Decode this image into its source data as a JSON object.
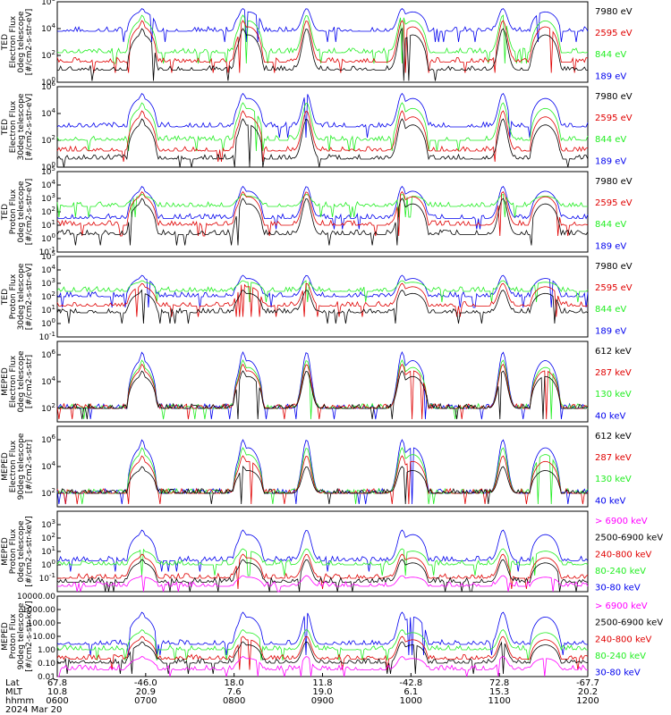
{
  "colors": {
    "black": "#000000",
    "red": "#e00000",
    "green": "#22ee22",
    "blue": "#0000ee",
    "magenta": "#ff00ff"
  },
  "chart_data": [
    {
      "type": "line",
      "ylog": true,
      "ylim_exp": [
        0,
        6
      ],
      "ylabel": [
        "TED",
        "Electron Flux",
        "0deg telescope",
        "[#/cm2-s-str-eV]"
      ],
      "yticks": [
        "10^0",
        "10^2",
        "10^4",
        "10^6"
      ],
      "legend": [
        {
          "label": "7980 eV",
          "color": "black"
        },
        {
          "label": "2595 eV",
          "color": "red"
        },
        {
          "label": "844 eV",
          "color": "green"
        },
        {
          "label": "189 eV",
          "color": "blue"
        }
      ],
      "series": [
        {
          "color": "blue",
          "base": 3.8,
          "peak": 5.5
        },
        {
          "color": "green",
          "base": 2.2,
          "peak": 5.0
        },
        {
          "color": "red",
          "base": 1.5,
          "peak": 4.6
        },
        {
          "color": "black",
          "base": 0.9,
          "peak": 4.0
        }
      ]
    },
    {
      "type": "line",
      "ylog": true,
      "ylim_exp": [
        0,
        6
      ],
      "ylabel": [
        "TED",
        "Electron Flux",
        "30deg telescope",
        "[#/cm2-s-str-eV]"
      ],
      "yticks": [
        "10^0",
        "10^2",
        "10^4",
        "10^6"
      ],
      "legend": [
        {
          "label": "7980 eV",
          "color": "black"
        },
        {
          "label": "2595 eV",
          "color": "red"
        },
        {
          "label": "844 eV",
          "color": "green"
        },
        {
          "label": "189 eV",
          "color": "blue"
        }
      ],
      "series": [
        {
          "color": "blue",
          "base": 3.0,
          "peak": 5.5
        },
        {
          "color": "green",
          "base": 2.0,
          "peak": 4.8
        },
        {
          "color": "red",
          "base": 1.2,
          "peak": 4.2
        },
        {
          "color": "black",
          "base": 0.6,
          "peak": 3.6
        }
      ]
    },
    {
      "type": "line",
      "ylog": true,
      "ylim_exp": [
        -1,
        5
      ],
      "ylabel": [
        "TED",
        "Proton Flux",
        "0deg telescope",
        "[#/cm2-s-str-eV]"
      ],
      "yticks": [
        "10^-1",
        "10^0",
        "10^1",
        "10^2",
        "10^3",
        "10^4",
        "10^5"
      ],
      "legend": [
        {
          "label": "7980 eV",
          "color": "black"
        },
        {
          "label": "2595 eV",
          "color": "red"
        },
        {
          "label": "844 eV",
          "color": "green"
        },
        {
          "label": "189 eV",
          "color": "blue"
        }
      ],
      "series": [
        {
          "color": "blue",
          "base": 1.5,
          "peak": 3.9
        },
        {
          "color": "green",
          "base": 2.4,
          "peak": 3.3
        },
        {
          "color": "red",
          "base": 1.0,
          "peak": 3.5
        },
        {
          "color": "black",
          "base": 0.3,
          "peak": 3.0
        }
      ]
    },
    {
      "type": "line",
      "ylog": true,
      "ylim_exp": [
        -1,
        5
      ],
      "ylabel": [
        "TED",
        "Proton Flux",
        "30deg telescope",
        "[#/cm2-s-str-eV]"
      ],
      "yticks": [
        "10^-1",
        "10^0",
        "10^1",
        "10^2",
        "10^3",
        "10^4",
        "10^5"
      ],
      "legend": [
        {
          "label": "7980 eV",
          "color": "black"
        },
        {
          "label": "2595 eV",
          "color": "red"
        },
        {
          "label": "844 eV",
          "color": "green"
        },
        {
          "label": "189 eV",
          "color": "blue"
        }
      ],
      "series": [
        {
          "color": "blue",
          "base": 2.0,
          "peak": 3.6
        },
        {
          "color": "green",
          "base": 2.4,
          "peak": 3.2
        },
        {
          "color": "red",
          "base": 1.3,
          "peak": 3.0
        },
        {
          "color": "black",
          "base": 0.8,
          "peak": 2.5
        }
      ]
    },
    {
      "type": "line",
      "ylog": true,
      "ylim_exp": [
        1,
        7
      ],
      "ylabel": [
        "MEPED",
        "Electron Flux",
        "0deg telescope",
        "[#/cm2-s-str]"
      ],
      "yticks": [
        "10^2",
        "10^4",
        "10^6"
      ],
      "legend": [
        {
          "label": "612 keV",
          "color": "black"
        },
        {
          "label": "287 keV",
          "color": "red"
        },
        {
          "label": "130 keV",
          "color": "green"
        },
        {
          "label": "40 keV",
          "color": "blue"
        }
      ],
      "series": [
        {
          "color": "blue",
          "base": 2.0,
          "peak": 6.2
        },
        {
          "color": "green",
          "base": 2.0,
          "peak": 5.6
        },
        {
          "color": "red",
          "base": 2.0,
          "peak": 5.3
        },
        {
          "color": "black",
          "base": 2.0,
          "peak": 4.8
        }
      ]
    },
    {
      "type": "line",
      "ylog": true,
      "ylim_exp": [
        1,
        7
      ],
      "ylabel": [
        "MEPED",
        "Electron Flux",
        "90deg telescope",
        "[#/cm2-s-str]"
      ],
      "yticks": [
        "10^2",
        "10^4",
        "10^6"
      ],
      "legend": [
        {
          "label": "612 keV",
          "color": "black"
        },
        {
          "label": "287 keV",
          "color": "red"
        },
        {
          "label": "130 keV",
          "color": "green"
        },
        {
          "label": "40 keV",
          "color": "blue"
        }
      ],
      "series": [
        {
          "color": "blue",
          "base": 2.0,
          "peak": 6.0
        },
        {
          "color": "green",
          "base": 2.0,
          "peak": 5.4
        },
        {
          "color": "red",
          "base": 2.0,
          "peak": 4.8
        },
        {
          "color": "black",
          "base": 2.0,
          "peak": 4.0
        }
      ]
    },
    {
      "type": "line",
      "ylog": true,
      "ylim_exp": [
        -2,
        4
      ],
      "ylabel": [
        "MEPED",
        "Proton Flux",
        "0deg telescope",
        "[#/cm2-s-str-keV]"
      ],
      "yticks": [
        "10^-1",
        "10^0",
        "10^1",
        "10^2",
        "10^3"
      ],
      "legend": [
        {
          "label": "> 6900 keV",
          "color": "magenta"
        },
        {
          "label": "2500-6900 keV",
          "color": "black"
        },
        {
          "label": "240-800 keV",
          "color": "red"
        },
        {
          "label": "80-240 keV",
          "color": "green"
        },
        {
          "label": "30-80 keV",
          "color": "blue"
        }
      ],
      "series": [
        {
          "color": "blue",
          "base": 0.3,
          "peak": 2.6
        },
        {
          "color": "green",
          "base": 0.0,
          "peak": 1.2
        },
        {
          "color": "red",
          "base": -1.0,
          "peak": 0.8
        },
        {
          "color": "black",
          "base": -1.3,
          "peak": 0.4
        },
        {
          "color": "magenta",
          "base": -1.6,
          "peak": -0.8
        }
      ]
    },
    {
      "type": "line",
      "ylog": true,
      "ylim_exp": [
        -2,
        4
      ],
      "ylabel": [
        "MEPED",
        "Proton Flux",
        "90deg telescope",
        "[#/cm2-s-str-keV]"
      ],
      "yticks": [
        "0.01",
        "0.10",
        "1.00",
        "10.00",
        "100.00",
        "1000.00",
        "10000.00"
      ],
      "legend": [
        {
          "label": "> 6900 keV",
          "color": "magenta"
        },
        {
          "label": "2500-6900 keV",
          "color": "black"
        },
        {
          "label": "240-800 keV",
          "color": "red"
        },
        {
          "label": "80-240 keV",
          "color": "green"
        },
        {
          "label": "30-80 keV",
          "color": "blue"
        }
      ],
      "series": [
        {
          "color": "blue",
          "base": 0.4,
          "peak": 2.8
        },
        {
          "color": "green",
          "base": 0.0,
          "peak": 1.5
        },
        {
          "color": "red",
          "base": -0.7,
          "peak": 1.0
        },
        {
          "color": "black",
          "base": -1.0,
          "peak": 0.6
        },
        {
          "color": "magenta",
          "base": -1.5,
          "peak": -0.5
        }
      ]
    }
  ],
  "xaxis": {
    "row_labels": [
      "Lat",
      "MLT",
      "hhmm",
      "2024 Mar 20"
    ],
    "columns": [
      {
        "lat": "67.8",
        "mlt": "10.8",
        "hhmm": "0600"
      },
      {
        "lat": "-46.0",
        "mlt": "20.9",
        "hhmm": "0700"
      },
      {
        "lat": "18.0",
        "mlt": "7.6",
        "hhmm": "0800"
      },
      {
        "lat": "11.8",
        "mlt": "19.0",
        "hhmm": "0900"
      },
      {
        "lat": "-42.8",
        "mlt": "6.1",
        "hhmm": "1000"
      },
      {
        "lat": "72.8",
        "mlt": "15.3",
        "hhmm": "1100"
      },
      {
        "lat": "-67.7",
        "mlt": "20.2",
        "hhmm": "1200"
      }
    ]
  }
}
